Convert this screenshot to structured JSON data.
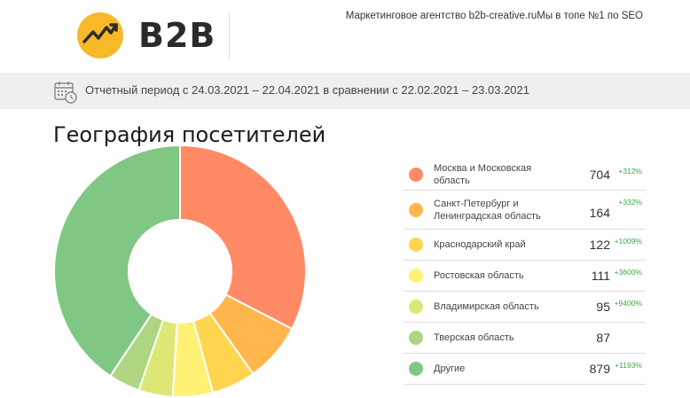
{
  "header": {
    "logo_text": "B2B",
    "tagline": "Маркетинговое агентство b2b-creative.ruМы в топе №1 по SEO"
  },
  "period": {
    "text": "Отчетный период с 24.03.2021 – 22.04.2021 в сравнении с 22.02.2021 – 23.03.2021"
  },
  "colors": {
    "logo_yellow": "#f7b928"
  },
  "chart_data": {
    "type": "pie",
    "title": "География посетителей",
    "categories": [
      "Москва и Московская область",
      "Санкт-Петербург и Ленинградская область",
      "Краснодарский край",
      "Ростовская область",
      "Владимирская область",
      "Тверская область",
      "Другие"
    ],
    "values": [
      704,
      164,
      122,
      111,
      95,
      87,
      879
    ],
    "changes": [
      "+312%",
      "+332%",
      "+1009%",
      "+3600%",
      "+9400%",
      "",
      "+1193%"
    ],
    "colors": [
      "#ff8a65",
      "#ffb74d",
      "#ffd54f",
      "#fff176",
      "#dce775",
      "#aed581",
      "#81c784"
    ],
    "donut": true
  }
}
